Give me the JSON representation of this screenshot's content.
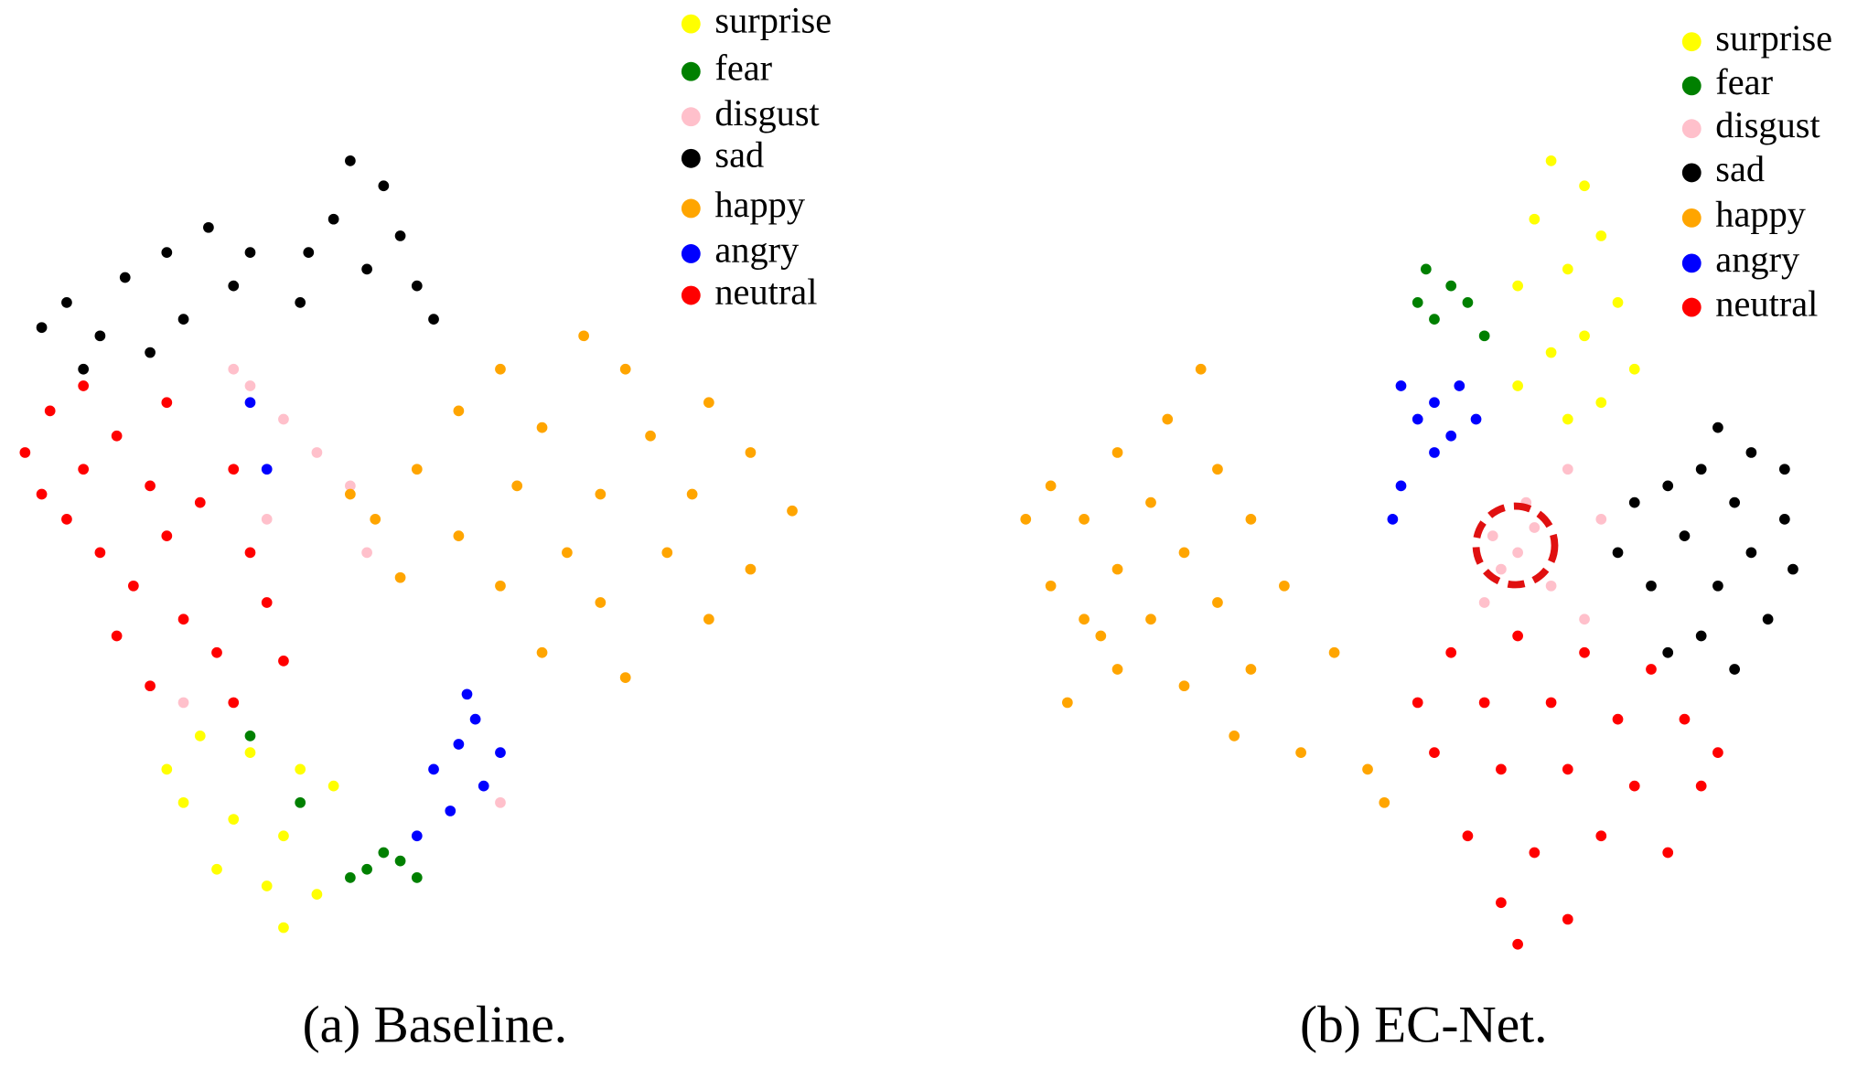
{
  "chart_data": [
    {
      "type": "scatter",
      "title": "(a) Baseline.",
      "xlim": [
        0,
        100
      ],
      "ylim": [
        0,
        100
      ],
      "series": [
        {
          "name": "surprise",
          "color": "#ffff00",
          "x": [
            24,
            30,
            36,
            22,
            28,
            34,
            40,
            26,
            32,
            34,
            38,
            20
          ],
          "values": [
            26,
            24,
            22,
            18,
            16,
            14,
            20,
            10,
            8,
            3,
            7,
            22
          ]
        },
        {
          "name": "fear",
          "color": "#008000",
          "x": [
            44,
            46,
            48,
            50,
            42,
            36,
            30
          ],
          "values": [
            10,
            12,
            11,
            9,
            9,
            18,
            26
          ]
        },
        {
          "name": "disgust",
          "color": "#ffc0cb",
          "x": [
            30,
            34,
            38,
            42,
            32,
            44,
            28,
            60,
            22
          ],
          "values": [
            68,
            64,
            60,
            56,
            52,
            48,
            70,
            18,
            30
          ]
        },
        {
          "name": "sad",
          "color": "#000000",
          "x": [
            42,
            46,
            40,
            48,
            37,
            44,
            50,
            36,
            25,
            30,
            20,
            15,
            8,
            5,
            12,
            18,
            22,
            10,
            28,
            52
          ],
          "values": [
            95,
            92,
            88,
            86,
            84,
            82,
            80,
            78,
            87,
            84,
            84,
            81,
            78,
            75,
            74,
            72,
            76,
            70,
            80,
            76
          ]
        },
        {
          "name": "happy",
          "color": "#ffa500",
          "x": [
            70,
            60,
            75,
            85,
            55,
            65,
            78,
            90,
            50,
            62,
            72,
            83,
            95,
            45,
            55,
            68,
            80,
            90,
            60,
            72,
            85,
            65,
            75,
            48,
            42
          ],
          "values": [
            74,
            70,
            70,
            66,
            65,
            63,
            62,
            60,
            58,
            56,
            55,
            55,
            53,
            52,
            50,
            48,
            48,
            46,
            44,
            42,
            40,
            36,
            33,
            45,
            55
          ]
        },
        {
          "name": "angry",
          "color": "#0000ff",
          "x": [
            52,
            55,
            58,
            54,
            57,
            60,
            50,
            56,
            30,
            32
          ],
          "values": [
            22,
            25,
            20,
            17,
            28,
            24,
            14,
            31,
            66,
            58
          ]
        },
        {
          "name": "neutral",
          "color": "#ff0000",
          "x": [
            3,
            6,
            10,
            14,
            18,
            8,
            12,
            16,
            20,
            24,
            28,
            30,
            22,
            26,
            32,
            14,
            18,
            28,
            34,
            5,
            10,
            20
          ],
          "values": [
            60,
            65,
            58,
            62,
            56,
            52,
            48,
            44,
            50,
            54,
            58,
            48,
            40,
            36,
            42,
            38,
            32,
            30,
            35,
            55,
            68,
            66
          ]
        }
      ]
    },
    {
      "type": "scatter",
      "title": "(b) EC-Net.",
      "xlim": [
        0,
        100
      ],
      "ylim": [
        0,
        100
      ],
      "series": [
        {
          "name": "surprise",
          "color": "#ffff00",
          "x": [
            66,
            70,
            64,
            72,
            68,
            62,
            74,
            70,
            66,
            76,
            62,
            72,
            68
          ],
          "values": [
            95,
            92,
            88,
            86,
            82,
            80,
            78,
            74,
            72,
            70,
            68,
            66,
            64
          ]
        },
        {
          "name": "fear",
          "color": "#008000",
          "x": [
            51,
            54,
            52,
            56,
            58,
            50
          ],
          "values": [
            82,
            80,
            76,
            78,
            74,
            78
          ]
        },
        {
          "name": "disgust",
          "color": "#ffc0cb",
          "x": [
            59,
            62,
            64,
            60,
            66,
            70,
            63,
            72,
            58,
            68
          ],
          "values": [
            50,
            48,
            51,
            46,
            44,
            40,
            54,
            52,
            42,
            58
          ]
        },
        {
          "name": "sad",
          "color": "#000000",
          "x": [
            86,
            90,
            94,
            84,
            80,
            88,
            94,
            76,
            82,
            90,
            95,
            86,
            78,
            92,
            84,
            88,
            74,
            80
          ],
          "values": [
            63,
            60,
            58,
            58,
            56,
            54,
            52,
            54,
            50,
            48,
            46,
            44,
            44,
            40,
            38,
            34,
            48,
            36
          ]
        },
        {
          "name": "happy",
          "color": "#ffa500",
          "x": [
            24,
            20,
            14,
            6,
            3,
            10,
            18,
            26,
            30,
            22,
            14,
            6,
            10,
            18,
            26,
            34,
            40,
            30,
            22,
            14,
            8,
            28,
            36,
            44,
            46,
            12
          ],
          "values": [
            70,
            64,
            60,
            56,
            52,
            52,
            54,
            58,
            52,
            48,
            46,
            44,
            40,
            40,
            42,
            44,
            36,
            34,
            32,
            34,
            30,
            26,
            24,
            22,
            18,
            38
          ]
        },
        {
          "name": "angry",
          "color": "#0000ff",
          "x": [
            48,
            52,
            55,
            50,
            54,
            57,
            48,
            47,
            52
          ],
          "values": [
            68,
            66,
            68,
            64,
            62,
            64,
            56,
            52,
            60
          ]
        },
        {
          "name": "neutral",
          "color": "#ff0000",
          "x": [
            54,
            62,
            70,
            78,
            58,
            66,
            74,
            82,
            52,
            60,
            68,
            76,
            84,
            56,
            64,
            72,
            80,
            60,
            68,
            62,
            86,
            50
          ],
          "values": [
            36,
            38,
            36,
            34,
            30,
            30,
            28,
            28,
            24,
            22,
            22,
            20,
            20,
            14,
            12,
            14,
            12,
            6,
            4,
            1,
            24,
            30
          ]
        }
      ]
    }
  ]
}
